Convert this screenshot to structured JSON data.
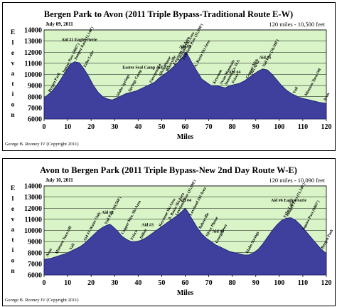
{
  "chart_data": [
    {
      "type": "area",
      "title": "Bergen Park to Avon (2011 Triple Bypass-Traditional Route E-W)",
      "date": "July 09, 2011",
      "summary": "120 miles - 10,500 feet",
      "xlabel": "Miles",
      "ylabel": "Elevation",
      "credit": "George B. Rooney IV (Copyright 2011)",
      "xlim": [
        0,
        120
      ],
      "ylim": [
        6000,
        14000
      ],
      "x_ticks": [
        "0",
        "10",
        "20",
        "30",
        "40",
        "50",
        "60",
        "70",
        "80",
        "90",
        "100",
        "110",
        "120"
      ],
      "y_ticks": [
        "6000",
        "7000",
        "8000",
        "9000",
        "10000",
        "11000",
        "12000",
        "13000",
        "14000"
      ],
      "grid": true,
      "fill_color": "#3f3f9e",
      "plot_background": "#d9f5c8",
      "profile": {
        "x": [
          0,
          3,
          6,
          9,
          11,
          13,
          15,
          17,
          19,
          21,
          23,
          25,
          27,
          29,
          31,
          33,
          35,
          37,
          39,
          41,
          43,
          45,
          47,
          49,
          51,
          53,
          55,
          57,
          59,
          60,
          61,
          63,
          65,
          67,
          69,
          71,
          73,
          75,
          77,
          79,
          81,
          83,
          85,
          87,
          89,
          91,
          93,
          95,
          97,
          99,
          101,
          103,
          105,
          107,
          109,
          111,
          113,
          115,
          117,
          120
        ],
        "y": [
          7900,
          8400,
          9200,
          10200,
          10900,
          11140,
          11050,
          10500,
          9800,
          9000,
          8400,
          8000,
          7800,
          7700,
          7900,
          8100,
          8300,
          8400,
          8500,
          8700,
          8900,
          9100,
          9300,
          9700,
          10000,
          10300,
          10700,
          11100,
          11600,
          11990,
          11800,
          11000,
          10300,
          9600,
          9300,
          9000,
          9000,
          8900,
          8800,
          9000,
          9100,
          9200,
          9400,
          9700,
          10000,
          10300,
          10500,
          10400,
          10000,
          9500,
          9000,
          8600,
          8300,
          8100,
          7900,
          7800,
          7700,
          7600,
          7500,
          7400
        ]
      },
      "annotations": [
        {
          "x": 2,
          "y": 8250,
          "label": "Bergen Park"
        },
        {
          "x": 8,
          "y": 10000,
          "label": "Squaw Pass (9807')"
        },
        {
          "x": 13,
          "y": 11140,
          "label": "Juniper Pass (11,140')"
        },
        {
          "x": 17,
          "y": 10500,
          "label": "Echo Lake"
        },
        {
          "x": 15,
          "y": 13000,
          "label": "Aid #1 Eagles Aerie",
          "horizontal": true
        },
        {
          "x": 31,
          "y": 7900,
          "label": "Idaho Springs"
        },
        {
          "x": 36,
          "y": 8300,
          "label": "Springs Camp"
        },
        {
          "x": 43,
          "y": 10500,
          "label": "Easter Seal Camp Aid #2",
          "horizontal": true
        },
        {
          "x": 45,
          "y": 9100,
          "label": "Georgetown"
        },
        {
          "x": 49,
          "y": 9700,
          "label": "Silver Plume"
        },
        {
          "x": 52,
          "y": 10100,
          "label": "Bakerville"
        },
        {
          "x": 55,
          "y": 10700,
          "label": "Keystone Ski Area"
        },
        {
          "x": 57,
          "y": 11100,
          "label": "Loveland Ski Area"
        },
        {
          "x": 59,
          "y": 11600,
          "label": "Loveland Pass (11,990')"
        },
        {
          "x": 60,
          "y": 12400,
          "label": "Aid #3",
          "horizontal": true
        },
        {
          "x": 64,
          "y": 10500,
          "label": "A. Basin Ski Area"
        },
        {
          "x": 72,
          "y": 9000,
          "label": "Keystone"
        },
        {
          "x": 75,
          "y": 8950,
          "label": "Swan Mountain"
        },
        {
          "x": 77,
          "y": 8900,
          "label": "Summit Co. H.S."
        },
        {
          "x": 80,
          "y": 9050,
          "label": "Frisco"
        },
        {
          "x": 81,
          "y": 10100,
          "label": "Aid #4",
          "horizontal": true
        },
        {
          "x": 86,
          "y": 9500,
          "label": "Copper Mtn."
        },
        {
          "x": 88,
          "y": 9900,
          "label": "Ski Area"
        },
        {
          "x": 93,
          "y": 10500,
          "label": "Vail Pass (10,560')"
        },
        {
          "x": 94,
          "y": 11400,
          "label": "Aid #5",
          "horizontal": true
        },
        {
          "x": 106,
          "y": 8150,
          "label": "Vail"
        },
        {
          "x": 111,
          "y": 7900,
          "label": "Minturn Turn Off"
        },
        {
          "x": 119,
          "y": 7450,
          "label": "Avon"
        }
      ]
    },
    {
      "type": "area",
      "title": "Avon to Bergen Park (2011 Triple Bypass-New 2nd Day Route W-E)",
      "date": "July 10, 2011",
      "summary": "120 miles - 10,090 feet",
      "xlabel": "Miles",
      "ylabel": "Elevation",
      "credit": "George B. Rooney IV (Copyright 2011)",
      "xlim": [
        0,
        120
      ],
      "ylim": [
        6000,
        14000
      ],
      "x_ticks": [
        "0",
        "10",
        "20",
        "30",
        "40",
        "50",
        "60",
        "70",
        "80",
        "90",
        "100",
        "110",
        "120"
      ],
      "y_ticks": [
        "6000",
        "7000",
        "8000",
        "9000",
        "10000",
        "11000",
        "12000",
        "13000",
        "14000"
      ],
      "grid": true,
      "fill_color": "#3f3f9e",
      "plot_background": "#d9f5c8",
      "profile": {
        "x": [
          0,
          3,
          6,
          9,
          12,
          15,
          17,
          19,
          21,
          23,
          25,
          27,
          28,
          29,
          31,
          33,
          35,
          37,
          39,
          41,
          43,
          45,
          47,
          49,
          51,
          53,
          55,
          57,
          59,
          60,
          61,
          63,
          65,
          67,
          69,
          71,
          73,
          75,
          77,
          79,
          81,
          83,
          85,
          87,
          89,
          91,
          93,
          95,
          97,
          99,
          101,
          103,
          105,
          107,
          109,
          111,
          113,
          115,
          117,
          120
        ],
        "y": [
          7400,
          7500,
          7700,
          7900,
          8200,
          8500,
          8800,
          9200,
          9600,
          10000,
          10300,
          10500,
          10560,
          10400,
          10000,
          9500,
          9200,
          9000,
          9000,
          9100,
          9300,
          9600,
          9900,
          10200,
          10500,
          10800,
          11100,
          11400,
          11800,
          11990,
          11700,
          11000,
          10300,
          9700,
          9300,
          9000,
          8700,
          8500,
          8300,
          8100,
          8000,
          7900,
          7800,
          7800,
          8000,
          8300,
          8800,
          9400,
          10000,
          10500,
          10900,
          11100,
          11140,
          10900,
          10500,
          10000,
          9500,
          9000,
          8500,
          7900
        ]
      },
      "annotations": [
        {
          "x": 1,
          "y": 7500,
          "label": "Avon"
        },
        {
          "x": 5,
          "y": 7750,
          "label": "Minturn Turn Off"
        },
        {
          "x": 11,
          "y": 8100,
          "label": "Vail"
        },
        {
          "x": 17,
          "y": 8900,
          "label": "Aid #1-Water Only"
        },
        {
          "x": 26,
          "y": 10400,
          "label": "Vail Pass (10,560')"
        },
        {
          "x": 27,
          "y": 11500,
          "label": "Aid #2",
          "horizontal": true
        },
        {
          "x": 33,
          "y": 9500,
          "label": "Copper Mtn. Ski Area"
        },
        {
          "x": 37,
          "y": 9000,
          "label": "Frisco"
        },
        {
          "x": 41,
          "y": 9100,
          "label": "Dillon"
        },
        {
          "x": 44,
          "y": 10400,
          "label": "Aid #3",
          "horizontal": true
        },
        {
          "x": 49,
          "y": 10200,
          "label": "Keystone Ski Area"
        },
        {
          "x": 53,
          "y": 10800,
          "label": "A. Basin Ski Area"
        },
        {
          "x": 56,
          "y": 11300,
          "label": "Loveland Pass (11,990')"
        },
        {
          "x": 60,
          "y": 12600,
          "label": "Aid #4",
          "horizontal": true
        },
        {
          "x": 62,
          "y": 11400,
          "label": "Loveland Ski Area"
        },
        {
          "x": 66,
          "y": 10000,
          "label": "Bakerville"
        },
        {
          "x": 69,
          "y": 9300,
          "label": "Silver Plume"
        },
        {
          "x": 73,
          "y": 8700,
          "label": "Georgetown"
        },
        {
          "x": 74,
          "y": 9800,
          "label": "Aid #5",
          "horizontal": true
        },
        {
          "x": 86,
          "y": 7800,
          "label": "Idaho Springs"
        },
        {
          "x": 102,
          "y": 11000,
          "label": "Echo Lake"
        },
        {
          "x": 103,
          "y": 11100,
          "label": "Juniper Pass (11,140')"
        },
        {
          "x": 104,
          "y": 12600,
          "label": "Aid #6 Eagles Aerie",
          "horizontal": true
        },
        {
          "x": 110,
          "y": 9900,
          "label": "Squaw Pass (9807')"
        },
        {
          "x": 118,
          "y": 8200,
          "label": "Bergen Park"
        }
      ]
    }
  ]
}
